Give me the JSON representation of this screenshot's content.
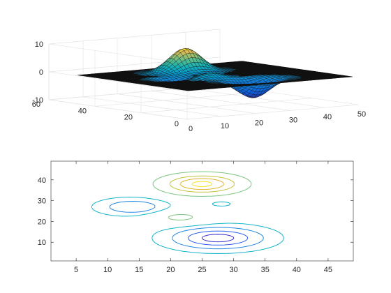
{
  "chart_data": [
    {
      "type": "surface",
      "description_visible": "3-D mesh surface plot (MATLAB peaks-like), parula colormap",
      "axes": {
        "x": {
          "ticks": [
            0,
            10,
            20,
            30,
            40,
            50
          ],
          "range": [
            0,
            50
          ]
        },
        "y": {
          "ticks": [
            0,
            20,
            40,
            60
          ],
          "range": [
            0,
            60
          ]
        },
        "z": {
          "ticks": [
            -10,
            0,
            10
          ],
          "range": [
            -10,
            10
          ]
        }
      },
      "grid": true,
      "surface_grid": {
        "nx": 49,
        "ny": 49
      },
      "colors": {
        "low": "#352a87",
        "mid": "#21b1a7",
        "high": "#f9fb0e",
        "floor": "#101010"
      }
    },
    {
      "type": "contour",
      "axes": {
        "x": {
          "ticks": [
            5,
            10,
            15,
            20,
            25,
            30,
            35,
            40,
            45
          ],
          "range": [
            1,
            49
          ]
        },
        "y": {
          "ticks": [
            10,
            20,
            30,
            40
          ],
          "range": [
            1,
            49
          ]
        }
      },
      "levels": [
        {
          "color": "#3a2ec8",
          "z": -5.5
        },
        {
          "color": "#2a5ef2",
          "z": -3.5
        },
        {
          "color": "#1f86e2",
          "z": -1.5
        },
        {
          "color": "#12b4c8",
          "z": -0.3
        },
        {
          "color": "#7ac47e",
          "z": 1.5
        },
        {
          "color": "#c3c137",
          "z": 4.0
        },
        {
          "color": "#e0b32c",
          "z": 6.0
        },
        {
          "color": "#f3e21a",
          "z": 7.8
        }
      ]
    }
  ]
}
